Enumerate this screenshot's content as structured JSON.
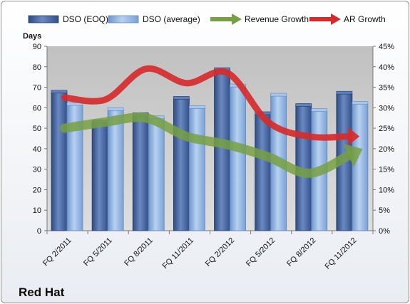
{
  "company_name": "Red Hat",
  "chart_data": {
    "type": "bar",
    "y_axis_title": "Days",
    "categories": [
      "FQ 2/2011",
      "FQ 5/2011",
      "FQ 8/2011",
      "FQ 11/2011",
      "FQ 2/2012",
      "FQ 5/2012",
      "FQ 8/2012",
      "FQ 11/2012"
    ],
    "ylim": [
      0,
      90
    ],
    "y_ticks": [
      "0",
      "10",
      "20",
      "30",
      "40",
      "50",
      "60",
      "70",
      "80",
      "90"
    ],
    "y2lim": [
      0,
      45
    ],
    "y2_ticks": [
      "0%",
      "5%",
      "10%",
      "15%",
      "20%",
      "25%",
      "30%",
      "35%",
      "40%",
      "45%"
    ],
    "grid": false,
    "legend_position": "top",
    "series": [
      {
        "name": "DSO (EOQ)",
        "kind": "bar",
        "axis": "left",
        "color": "#4f6ea8",
        "values": [
          67.5,
          53,
          56.5,
          64.5,
          78.5,
          57,
          61,
          67
        ]
      },
      {
        "name": "DSO (average)",
        "kind": "bar",
        "axis": "left",
        "color": "#8fb4e3",
        "values": [
          61.5,
          59,
          55,
          60,
          70.5,
          66,
          58.5,
          62
        ]
      },
      {
        "name": "Revenue Growth",
        "kind": "line",
        "axis": "right",
        "color": "#77a043",
        "values": [
          25,
          26.5,
          27.5,
          23,
          21,
          18,
          14,
          18.5
        ]
      },
      {
        "name": "AR Growth",
        "kind": "line",
        "axis": "right",
        "color": "#d62b2b",
        "values": [
          32.5,
          32,
          39.5,
          36,
          38.5,
          26.5,
          23,
          23
        ]
      }
    ]
  }
}
